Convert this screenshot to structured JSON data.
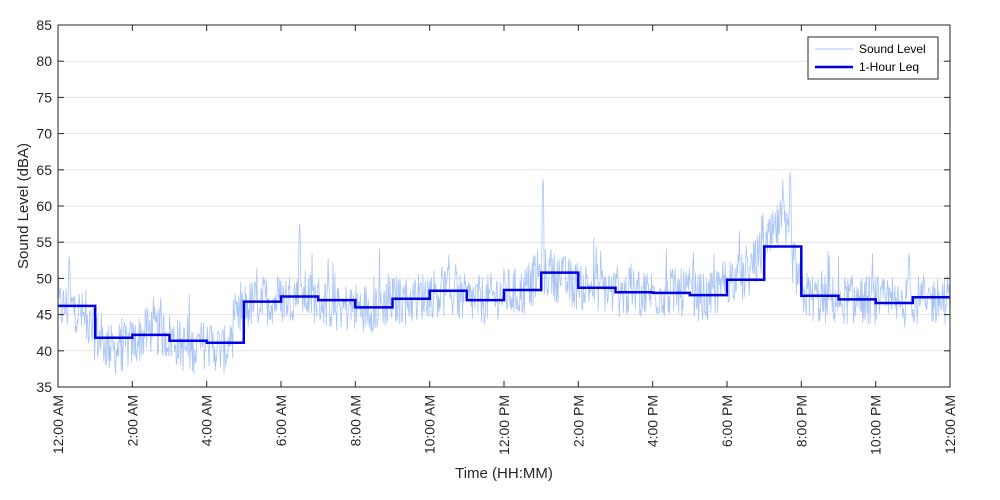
{
  "chart_data": {
    "type": "line",
    "title": "",
    "xlabel": "Time (HH:MM)",
    "ylabel": "Sound Level (dBA)",
    "ylim": [
      35,
      85
    ],
    "y_ticks": [
      35,
      40,
      45,
      50,
      55,
      60,
      65,
      70,
      75,
      80,
      85
    ],
    "xlim_hours": [
      0,
      24
    ],
    "x_tick_hours": [
      0,
      2,
      4,
      6,
      8,
      10,
      12,
      14,
      16,
      18,
      20,
      22,
      24
    ],
    "x_tick_labels": [
      "12:00 AM",
      "2:00 AM",
      "4:00 AM",
      "6:00 AM",
      "8:00 AM",
      "10:00 AM",
      "12:00 PM",
      "2:00 PM",
      "4:00 PM",
      "6:00 PM",
      "8:00 PM",
      "10:00 PM",
      "12:00 AM"
    ],
    "grid": true,
    "legend_position": "top-right",
    "series": [
      {
        "name": "Sound Level",
        "color": "#a9c4f5",
        "style": "thin",
        "x_hours": [
          0,
          0.5,
          1,
          1.5,
          2,
          2.5,
          3,
          3.5,
          4,
          4.5,
          5,
          5.5,
          6,
          6.5,
          7,
          7.5,
          8,
          8.5,
          9,
          9.5,
          10,
          10.5,
          11,
          11.5,
          12,
          12.5,
          13,
          13.5,
          14,
          14.5,
          15,
          15.5,
          16,
          16.5,
          17,
          17.5,
          18,
          18.5,
          19,
          19.5,
          20,
          20.5,
          21,
          21.5,
          22,
          22.5,
          23,
          23.5,
          24
        ],
        "values": [
          46,
          46,
          42,
          40,
          41,
          43,
          42,
          40,
          41,
          40,
          46,
          47,
          47,
          48,
          47,
          46,
          46,
          46,
          47,
          47,
          48,
          48,
          47,
          47,
          48,
          48,
          51,
          50,
          49,
          49,
          48,
          48,
          48,
          48,
          48,
          47,
          50,
          50,
          54,
          58,
          48,
          47,
          47,
          47,
          47,
          46,
          47,
          47,
          47
        ],
        "spikes": [
          {
            "x_hour": 0.3,
            "value": 53
          },
          {
            "x_hour": 6.5,
            "value": 57.5
          },
          {
            "x_hour": 10.7,
            "value": 52
          },
          {
            "x_hour": 13.05,
            "value": 63.7
          },
          {
            "x_hour": 19.7,
            "value": 64.7
          },
          {
            "x_hour": 22.9,
            "value": 53.5
          }
        ]
      },
      {
        "name": "1-Hour Leq",
        "color": "#0000e6",
        "style": "step",
        "hour_values": [
          46.2,
          41.8,
          42.2,
          41.4,
          41.1,
          46.8,
          47.5,
          47.0,
          46.0,
          47.2,
          48.3,
          47.0,
          48.4,
          50.8,
          48.7,
          48.1,
          48.0,
          47.7,
          49.8,
          54.4,
          47.6,
          47.1,
          46.6,
          47.4
        ]
      }
    ]
  }
}
